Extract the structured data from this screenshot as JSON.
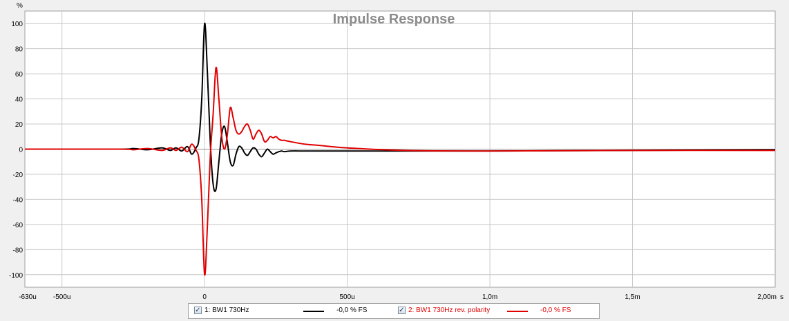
{
  "chart_data": {
    "type": "line",
    "title": "Impulse Response",
    "y_unit_label": "%",
    "x_unit_label": "s",
    "xlim": [
      -0.00063,
      0.002
    ],
    "ylim": [
      -110,
      110
    ],
    "x_ticks": [
      {
        "value": -0.00063,
        "label": "-630u"
      },
      {
        "value": -0.0005,
        "label": "-500u"
      },
      {
        "value": 0,
        "label": "0"
      },
      {
        "value": 0.0005,
        "label": "500u"
      },
      {
        "value": 0.001,
        "label": "1,0m"
      },
      {
        "value": 0.0015,
        "label": "1,5m"
      },
      {
        "value": 0.002,
        "label": "2,00m"
      }
    ],
    "y_ticks": [
      {
        "value": 100,
        "label": "100"
      },
      {
        "value": 80,
        "label": "80"
      },
      {
        "value": 60,
        "label": "60"
      },
      {
        "value": 40,
        "label": "40"
      },
      {
        "value": 20,
        "label": "20"
      },
      {
        "value": 0,
        "label": "0"
      },
      {
        "value": -20,
        "label": "-20"
      },
      {
        "value": -40,
        "label": "-40"
      },
      {
        "value": -60,
        "label": "-60"
      },
      {
        "value": -80,
        "label": "-80"
      },
      {
        "value": -100,
        "label": "-100"
      }
    ],
    "grid": true,
    "legend_position": "bottom",
    "series": [
      {
        "name": "1: BW1 730Hz",
        "value_label": "-0,0 % FS",
        "color": "#000000",
        "x": [
          -0.00063,
          -0.0003,
          -0.00025,
          -0.0002,
          -0.00015,
          -0.00012,
          -0.0001,
          -8e-05,
          -6e-05,
          -4.5e-05,
          -3e-05,
          -2e-05,
          -1e-05,
          0,
          1e-05,
          2e-05,
          3e-05,
          4e-05,
          5e-05,
          6e-05,
          7e-05,
          8e-05,
          9e-05,
          0.0001,
          0.00011,
          0.00012,
          0.00013,
          0.00014,
          0.00015,
          0.00016,
          0.00017,
          0.00018,
          0.00019,
          0.0002,
          0.00021,
          0.00022,
          0.00023,
          0.00024,
          0.00025,
          0.00026,
          0.00027,
          0.00028,
          0.0003,
          0.00035,
          0.0004,
          0.0005,
          0.0007,
          0.001,
          0.0015,
          0.002
        ],
        "y": [
          0,
          0,
          0.5,
          -0.5,
          1,
          -1,
          1,
          -1.5,
          2,
          -4,
          1,
          8,
          40,
          100,
          60,
          5,
          -28,
          -32,
          -10,
          12,
          18,
          5,
          -10,
          -13,
          -4,
          2,
          1,
          -3,
          -5,
          -2,
          1,
          0,
          -4,
          -6,
          -3,
          0,
          -2,
          -4,
          -3,
          -2,
          -1.5,
          -2,
          -1.5,
          -1.5,
          -1.5,
          -1.5,
          -1.5,
          -1.5,
          -1,
          -0.5
        ]
      },
      {
        "name": "2: BW1 730Hz rev. polarity",
        "value_label": "-0,0 % FS",
        "color": "#e00000",
        "x": [
          -0.00063,
          -0.0003,
          -0.00025,
          -0.0002,
          -0.00015,
          -0.00012,
          -0.0001,
          -8e-05,
          -6e-05,
          -4.5e-05,
          -3e-05,
          -2e-05,
          -1e-05,
          0,
          1e-05,
          2e-05,
          3e-05,
          4e-05,
          5e-05,
          6e-05,
          7e-05,
          8e-05,
          9e-05,
          0.0001,
          0.00011,
          0.00012,
          0.00013,
          0.00014,
          0.00015,
          0.00016,
          0.00017,
          0.00018,
          0.00019,
          0.0002,
          0.00021,
          0.00022,
          0.00023,
          0.00024,
          0.00025,
          0.00026,
          0.00027,
          0.00028,
          0.0003,
          0.00035,
          0.0004,
          0.0005,
          0.0007,
          0.001,
          0.0015,
          0.002
        ],
        "y": [
          0,
          0,
          -0.5,
          0.5,
          -1,
          1,
          -1,
          1.5,
          -2,
          4,
          -1,
          -8,
          -40,
          -100,
          -60,
          -5,
          28,
          65,
          40,
          10,
          0,
          12,
          33,
          25,
          15,
          12,
          14,
          18,
          20,
          15,
          8,
          12,
          15,
          12,
          6,
          7,
          10,
          9,
          10,
          8,
          7,
          7,
          6,
          4,
          3,
          1,
          -1,
          -1.5,
          -1,
          -1
        ]
      }
    ]
  }
}
